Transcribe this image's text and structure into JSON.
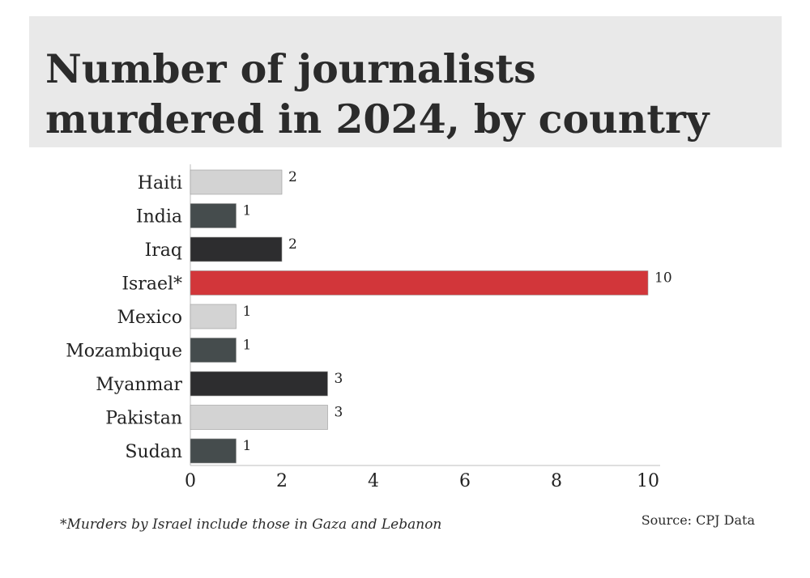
{
  "colors": {
    "title_bg": "#e9e9e9",
    "light": "#d3d3d3",
    "slate": "#454c4d",
    "dark": "#2d2d2f",
    "highlight": "#d2363a",
    "axis": "#bdbdbd"
  },
  "chart_data": {
    "type": "bar",
    "orientation": "horizontal",
    "title": "Number of journalists murdered in 2024, by country",
    "categories": [
      "Haiti",
      "India",
      "Iraq",
      "Israel*",
      "Mexico",
      "Mozambique",
      "Myanmar",
      "Pakistan",
      "Sudan"
    ],
    "values": [
      2,
      1,
      2,
      10,
      1,
      1,
      3,
      3,
      1
    ],
    "bar_colors": [
      "light",
      "slate",
      "dark",
      "highlight",
      "light",
      "slate",
      "dark",
      "light",
      "slate"
    ],
    "xlim": [
      0,
      10
    ],
    "xticks": [
      0,
      2,
      4,
      6,
      8,
      10
    ],
    "xlabel": "",
    "ylabel": "",
    "grid": false,
    "legend": "none"
  },
  "footnote": "*Murders by Israel include those in Gaza and Lebanon",
  "source": "Source: CPJ Data"
}
